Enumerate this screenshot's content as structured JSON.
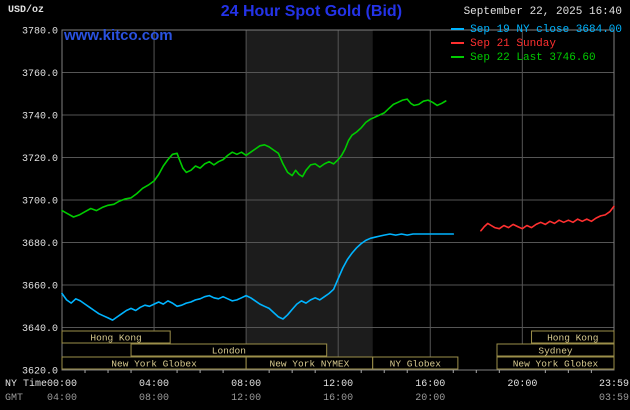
{
  "header": {
    "unit_label": "USD/oz",
    "title": "24 Hour Spot Gold (Bid)",
    "datetime": "September 22, 2025 16:40",
    "watermark": "www.kitco.com"
  },
  "legend": {
    "items": [
      {
        "id": "sep19",
        "label": "Sep 19 NY close 3684.00",
        "color": "#00b4ff"
      },
      {
        "id": "sep21",
        "label": "Sep 21 Sunday",
        "color": "#ff3030"
      },
      {
        "id": "sep22",
        "label": "Sep 22 Last 3746.60",
        "color": "#00cc00"
      }
    ]
  },
  "axes": {
    "x_label_row1": "NY Time",
    "x_label_row2": "GMT",
    "x_ticks": [
      {
        "h": 0,
        "ny": "00:00",
        "gmt": "04:00"
      },
      {
        "h": 4,
        "ny": "04:00",
        "gmt": "08:00"
      },
      {
        "h": 8,
        "ny": "08:00",
        "gmt": "12:00"
      },
      {
        "h": 12,
        "ny": "12:00",
        "gmt": "16:00"
      },
      {
        "h": 16,
        "ny": "16:00",
        "gmt": "20:00"
      },
      {
        "h": 20,
        "ny": "20:00",
        "gmt": ""
      },
      {
        "h": 23.9833,
        "ny": "23:59",
        "gmt": "03:59"
      }
    ],
    "y_ticks": [
      {
        "v": 3780,
        "label": "3780.0"
      },
      {
        "v": 3760,
        "label": "3760.0"
      },
      {
        "v": 3740,
        "label": "3740.0"
      },
      {
        "v": 3720,
        "label": "3720.0"
      },
      {
        "v": 3700,
        "label": "3700.0"
      },
      {
        "v": 3680,
        "label": "3680.0"
      },
      {
        "v": 3660,
        "label": "3660.0"
      },
      {
        "v": 3640,
        "label": "3640.0"
      },
      {
        "v": 3620,
        "label": "3620.0"
      }
    ]
  },
  "sessions": [
    {
      "label": "Hong Kong",
      "row": 0,
      "start": 0,
      "end": 4.7
    },
    {
      "label": "Hong Kong",
      "row": 0,
      "start": 20.4,
      "end": 23.9833
    },
    {
      "label": "London",
      "row": 1,
      "start": 3,
      "end": 11.5
    },
    {
      "label": "Sydney",
      "row": 1,
      "start": 18.9,
      "end": 23.9833
    },
    {
      "label": "New York Globex",
      "row": 2,
      "start": 0,
      "end": 8
    },
    {
      "label": "New York NYMEX",
      "row": 2,
      "start": 8,
      "end": 13.5
    },
    {
      "label": "NY Globex",
      "row": 2,
      "start": 13.5,
      "end": 17.2
    },
    {
      "label": "New York Globex",
      "row": 2,
      "start": 18.9,
      "end": 23.9833
    }
  ],
  "chart_data": {
    "type": "line",
    "title": "24 Hour Spot Gold (Bid)",
    "xlabel": "NY Time",
    "ylabel": "USD/oz",
    "x_unit": "hours, NY time",
    "xlim": [
      0,
      23.9833
    ],
    "ylim": [
      3620,
      3780
    ],
    "grid": true,
    "legend_position": "top-right",
    "nymex_band_hours": [
      8,
      13.5
    ],
    "series": [
      {
        "id": "sep19-ny-close",
        "name": "Sep 19 NY close 3684.00",
        "color": "#00b4ff",
        "points": [
          [
            0,
            3656
          ],
          [
            0.2,
            3653
          ],
          [
            0.4,
            3651.5
          ],
          [
            0.6,
            3653.5
          ],
          [
            0.8,
            3652.5
          ],
          [
            1,
            3651
          ],
          [
            1.2,
            3649.5
          ],
          [
            1.4,
            3648
          ],
          [
            1.6,
            3646.5
          ],
          [
            1.8,
            3645.5
          ],
          [
            2,
            3644.5
          ],
          [
            2.2,
            3643.5
          ],
          [
            2.4,
            3645
          ],
          [
            2.6,
            3646.5
          ],
          [
            2.8,
            3648
          ],
          [
            3,
            3649
          ],
          [
            3.2,
            3648
          ],
          [
            3.4,
            3649.5
          ],
          [
            3.6,
            3650.5
          ],
          [
            3.8,
            3650
          ],
          [
            4,
            3651
          ],
          [
            4.2,
            3652
          ],
          [
            4.4,
            3651
          ],
          [
            4.6,
            3652.5
          ],
          [
            4.8,
            3651.5
          ],
          [
            5,
            3650
          ],
          [
            5.2,
            3650.5
          ],
          [
            5.4,
            3651.5
          ],
          [
            5.6,
            3652
          ],
          [
            5.8,
            3653
          ],
          [
            6,
            3653.5
          ],
          [
            6.2,
            3654.5
          ],
          [
            6.4,
            3655
          ],
          [
            6.6,
            3654
          ],
          [
            6.8,
            3653.5
          ],
          [
            7,
            3654.5
          ],
          [
            7.2,
            3653.5
          ],
          [
            7.4,
            3652.5
          ],
          [
            7.6,
            3653
          ],
          [
            7.8,
            3654
          ],
          [
            8,
            3655
          ],
          [
            8.2,
            3654
          ],
          [
            8.4,
            3652.5
          ],
          [
            8.6,
            3651
          ],
          [
            8.8,
            3650
          ],
          [
            9,
            3649
          ],
          [
            9.2,
            3647
          ],
          [
            9.4,
            3645
          ],
          [
            9.6,
            3644
          ],
          [
            9.8,
            3646
          ],
          [
            10,
            3648.5
          ],
          [
            10.2,
            3651
          ],
          [
            10.4,
            3652.5
          ],
          [
            10.6,
            3651.5
          ],
          [
            10.8,
            3653
          ],
          [
            11,
            3654
          ],
          [
            11.2,
            3653
          ],
          [
            11.4,
            3654.5
          ],
          [
            11.6,
            3656
          ],
          [
            11.8,
            3658
          ],
          [
            12,
            3663
          ],
          [
            12.2,
            3668
          ],
          [
            12.4,
            3672
          ],
          [
            12.6,
            3675
          ],
          [
            12.8,
            3677.5
          ],
          [
            13,
            3679.5
          ],
          [
            13.2,
            3681
          ],
          [
            13.4,
            3682
          ],
          [
            13.6,
            3682.5
          ],
          [
            13.8,
            3683
          ],
          [
            14,
            3683.5
          ],
          [
            14.25,
            3684
          ],
          [
            14.5,
            3683.5
          ],
          [
            14.75,
            3684
          ],
          [
            15,
            3683.5
          ],
          [
            15.25,
            3684
          ],
          [
            15.5,
            3684
          ],
          [
            16,
            3684
          ],
          [
            16.5,
            3684
          ],
          [
            17,
            3684
          ]
        ]
      },
      {
        "id": "sep21-sunday",
        "name": "Sep 21 Sunday",
        "color": "#ff3030",
        "points": [
          [
            18.2,
            3685.5
          ],
          [
            18.35,
            3687.5
          ],
          [
            18.5,
            3689
          ],
          [
            18.65,
            3688
          ],
          [
            18.8,
            3687
          ],
          [
            19,
            3686.5
          ],
          [
            19.2,
            3688
          ],
          [
            19.4,
            3687
          ],
          [
            19.6,
            3688.5
          ],
          [
            19.8,
            3687.5
          ],
          [
            20,
            3686.5
          ],
          [
            20.2,
            3688
          ],
          [
            20.4,
            3687
          ],
          [
            20.6,
            3688.5
          ],
          [
            20.8,
            3689.5
          ],
          [
            21,
            3688.5
          ],
          [
            21.2,
            3690
          ],
          [
            21.4,
            3689
          ],
          [
            21.6,
            3690.5
          ],
          [
            21.8,
            3689.5
          ],
          [
            22,
            3690.5
          ],
          [
            22.2,
            3689.5
          ],
          [
            22.4,
            3691
          ],
          [
            22.6,
            3690
          ],
          [
            22.8,
            3691
          ],
          [
            23,
            3690
          ],
          [
            23.2,
            3691.5
          ],
          [
            23.4,
            3692.5
          ],
          [
            23.6,
            3693
          ],
          [
            23.8,
            3694.5
          ],
          [
            23.98,
            3697
          ]
        ]
      },
      {
        "id": "sep22-last",
        "name": "Sep 22 Last 3746.60",
        "color": "#00cc00",
        "points": [
          [
            0,
            3695
          ],
          [
            0.25,
            3693.5
          ],
          [
            0.5,
            3692
          ],
          [
            0.75,
            3693
          ],
          [
            1,
            3694.5
          ],
          [
            1.25,
            3696
          ],
          [
            1.5,
            3695
          ],
          [
            1.75,
            3696.5
          ],
          [
            2,
            3697.5
          ],
          [
            2.25,
            3698
          ],
          [
            2.5,
            3699.5
          ],
          [
            2.75,
            3700.5
          ],
          [
            3,
            3701
          ],
          [
            3.25,
            3703
          ],
          [
            3.5,
            3705.5
          ],
          [
            3.75,
            3707
          ],
          [
            4,
            3709
          ],
          [
            4.2,
            3712
          ],
          [
            4.4,
            3716
          ],
          [
            4.6,
            3719
          ],
          [
            4.8,
            3721.5
          ],
          [
            5,
            3722
          ],
          [
            5.1,
            3719
          ],
          [
            5.25,
            3715
          ],
          [
            5.4,
            3713
          ],
          [
            5.6,
            3714
          ],
          [
            5.8,
            3716
          ],
          [
            6,
            3715
          ],
          [
            6.2,
            3717
          ],
          [
            6.4,
            3718
          ],
          [
            6.6,
            3716.5
          ],
          [
            6.8,
            3718
          ],
          [
            7,
            3719
          ],
          [
            7.2,
            3721
          ],
          [
            7.4,
            3722.5
          ],
          [
            7.6,
            3721.5
          ],
          [
            7.8,
            3722.5
          ],
          [
            8,
            3721
          ],
          [
            8.2,
            3722.5
          ],
          [
            8.4,
            3724
          ],
          [
            8.6,
            3725.5
          ],
          [
            8.8,
            3726
          ],
          [
            9,
            3725
          ],
          [
            9.2,
            3723.5
          ],
          [
            9.4,
            3722
          ],
          [
            9.6,
            3717
          ],
          [
            9.8,
            3713
          ],
          [
            10,
            3711.5
          ],
          [
            10.15,
            3714
          ],
          [
            10.3,
            3712
          ],
          [
            10.45,
            3711
          ],
          [
            10.6,
            3714
          ],
          [
            10.8,
            3716.5
          ],
          [
            11,
            3717
          ],
          [
            11.2,
            3715.5
          ],
          [
            11.4,
            3717
          ],
          [
            11.6,
            3718
          ],
          [
            11.8,
            3717
          ],
          [
            12,
            3719
          ],
          [
            12.15,
            3721
          ],
          [
            12.3,
            3724
          ],
          [
            12.45,
            3728
          ],
          [
            12.6,
            3730.5
          ],
          [
            12.8,
            3732
          ],
          [
            13,
            3734
          ],
          [
            13.2,
            3736.5
          ],
          [
            13.4,
            3738
          ],
          [
            13.6,
            3739
          ],
          [
            13.8,
            3740
          ],
          [
            14,
            3741
          ],
          [
            14.2,
            3743
          ],
          [
            14.4,
            3745
          ],
          [
            14.6,
            3746
          ],
          [
            14.8,
            3747
          ],
          [
            15,
            3747.5
          ],
          [
            15.15,
            3745.5
          ],
          [
            15.3,
            3744.5
          ],
          [
            15.5,
            3745
          ],
          [
            15.7,
            3746.5
          ],
          [
            15.9,
            3747
          ],
          [
            16.1,
            3746
          ],
          [
            16.3,
            3744.5
          ],
          [
            16.5,
            3745.5
          ],
          [
            16.67,
            3746.6
          ]
        ]
      }
    ]
  },
  "colors": {
    "background": "#000000",
    "grid": "#555555",
    "frame": "#7f7f7f",
    "band": "#1c1c1c",
    "axis_text": "#e0e0e0",
    "gmt_text": "#9a9a9a",
    "tick": "#aaaaaa",
    "session_border": "#9c8f4a",
    "session_fill": "#000000",
    "session_text": "#d6c98e",
    "title": "#2433e8",
    "watermark": "#2a52e0",
    "date_text": "#e0e0e0"
  }
}
